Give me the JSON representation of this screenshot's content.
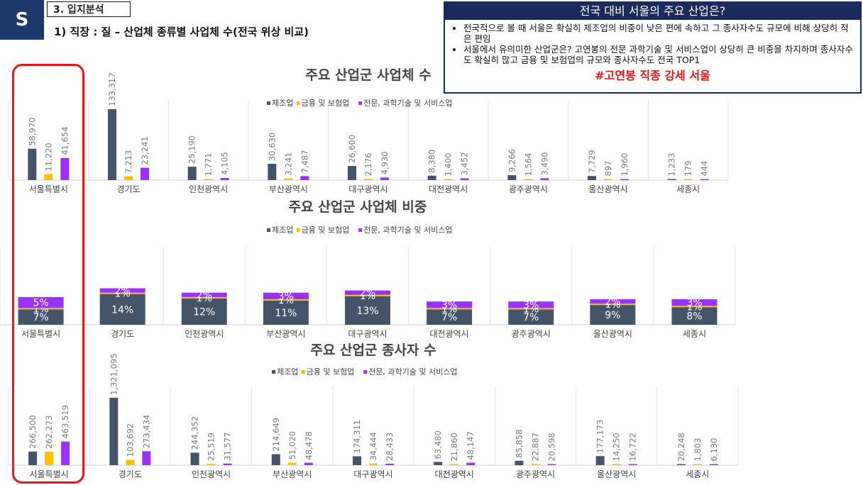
{
  "header": {
    "badge": "S",
    "section": "3. 입지분석",
    "subtitle": "1) 직장 : 질 – 산업체 종류별 사업체 수(전국 위상 비교)"
  },
  "callout": {
    "title": "전국 대비 서울의 주요 산업은?",
    "bullet1": "전국적으로 볼 때 서울은 확실히 제조업의 비중이 낮은 편에 속하고 그 종사자수도 규모에 비해 상당히 적은 편임",
    "bullet2": "서울에서 유의미한 산업군은? 고연봉의 전문 과학기술 및 서비스업이 상당히 큰 비중을 차지하며 종사자수도 확실히 많고 금융 및 보험업의 규모와 종사자수도 전국 TOP1",
    "tag": "#고연봉 직종 강세 서울"
  },
  "colors": {
    "manufacturing": "#44546a",
    "finance": "#ffc000",
    "science": "#9b30ff",
    "highlight": "#e8161b",
    "navy": "#1b2a5c"
  },
  "chart_data": [
    {
      "type": "bar",
      "title": "주요 산업군 사업체 수",
      "categories": [
        "서울특별시",
        "경기도",
        "인천광역시",
        "부산광역시",
        "대구광역시",
        "대전광역시",
        "광주광역시",
        "울산광역시",
        "세종시"
      ],
      "series": [
        {
          "name": "제조업",
          "values": [
            58970,
            133317,
            25190,
            30630,
            26600,
            8380,
            9266,
            7729,
            1233
          ],
          "labels": [
            "58,970",
            "133,317",
            "25,190",
            "30,630",
            "26,600",
            "8,380",
            "9,266",
            "7,729",
            "1,233"
          ]
        },
        {
          "name": "금융 및 보험업",
          "values": [
            11220,
            7213,
            1771,
            3241,
            2176,
            1400,
            1564,
            897,
            179
          ],
          "labels": [
            "11,220",
            "7,213",
            "1,771",
            "3,241",
            "2,176",
            "1,400",
            "1,564",
            "897",
            "179"
          ]
        },
        {
          "name": "전문, 과학기술 및 서비스업",
          "values": [
            41654,
            23241,
            4105,
            7487,
            4930,
            3452,
            3490,
            1960,
            444
          ],
          "labels": [
            "41,654",
            "23,241",
            "4,105",
            "7,487",
            "4,930",
            "3,452",
            "3,490",
            "1,960",
            "444"
          ]
        }
      ]
    },
    {
      "type": "stacked-bar",
      "title": "주요 산업군 사업체 비중",
      "categories": [
        "서울특별시",
        "경기도",
        "인천광역시",
        "부산광역시",
        "대구광역시",
        "대전광역시",
        "광주광역시",
        "울산광역시",
        "세종시"
      ],
      "series": [
        {
          "name": "제조업",
          "values": [
            7,
            14,
            12,
            11,
            13,
            7,
            7,
            9,
            8
          ],
          "labels": [
            "7%",
            "14%",
            "12%",
            "11%",
            "13%",
            "7%",
            "7%",
            "9%",
            "8%"
          ]
        },
        {
          "name": "금융 및 보험업",
          "values": [
            1,
            1,
            1,
            1,
            1,
            1,
            1,
            1,
            1
          ],
          "labels": [
            "1%",
            "1%",
            "1%",
            "1%",
            "1%",
            "1%",
            "1%",
            "1%",
            "1%"
          ]
        },
        {
          "name": "전문, 과학기술 및 서비스업",
          "values": [
            5,
            2,
            2,
            3,
            2,
            3,
            3,
            2,
            3
          ],
          "labels": [
            "5%",
            "2%",
            "2%",
            "3%",
            "2%",
            "3%",
            "3%",
            "2%",
            "3%"
          ]
        }
      ]
    },
    {
      "type": "bar",
      "title": "주요 산업군 종사자 수",
      "categories": [
        "서울특별시",
        "경기도",
        "인천광역시",
        "부산광역시",
        "대구광역시",
        "대전광역시",
        "광주광역시",
        "울산광역시",
        "세종시"
      ],
      "series": [
        {
          "name": "제조업",
          "values": [
            266500,
            1321095,
            244352,
            214649,
            174311,
            63480,
            85858,
            177173,
            20248
          ],
          "labels": [
            "266,500",
            "1,321,095",
            "244,352",
            "214,649",
            "174,311",
            "63,480",
            "85,858",
            "177,173",
            "20,248"
          ]
        },
        {
          "name": "금융 및 보험업",
          "values": [
            262273,
            103692,
            25519,
            51020,
            34444,
            21860,
            22887,
            14250,
            1803
          ],
          "labels": [
            "262,273",
            "103,692",
            "25,519",
            "51,020",
            "34,444",
            "21,860",
            "22,887",
            "14,250",
            "1,803"
          ]
        },
        {
          "name": "전문, 과학기술 및 서비스업",
          "values": [
            463519,
            273434,
            31577,
            48478,
            28433,
            48147,
            20598,
            16722,
            6130
          ],
          "labels": [
            "463,519",
            "273,434",
            "31,577",
            "48,478",
            "28,433",
            "48,147",
            "20,598",
            "16,722",
            "6,130"
          ]
        }
      ]
    }
  ]
}
